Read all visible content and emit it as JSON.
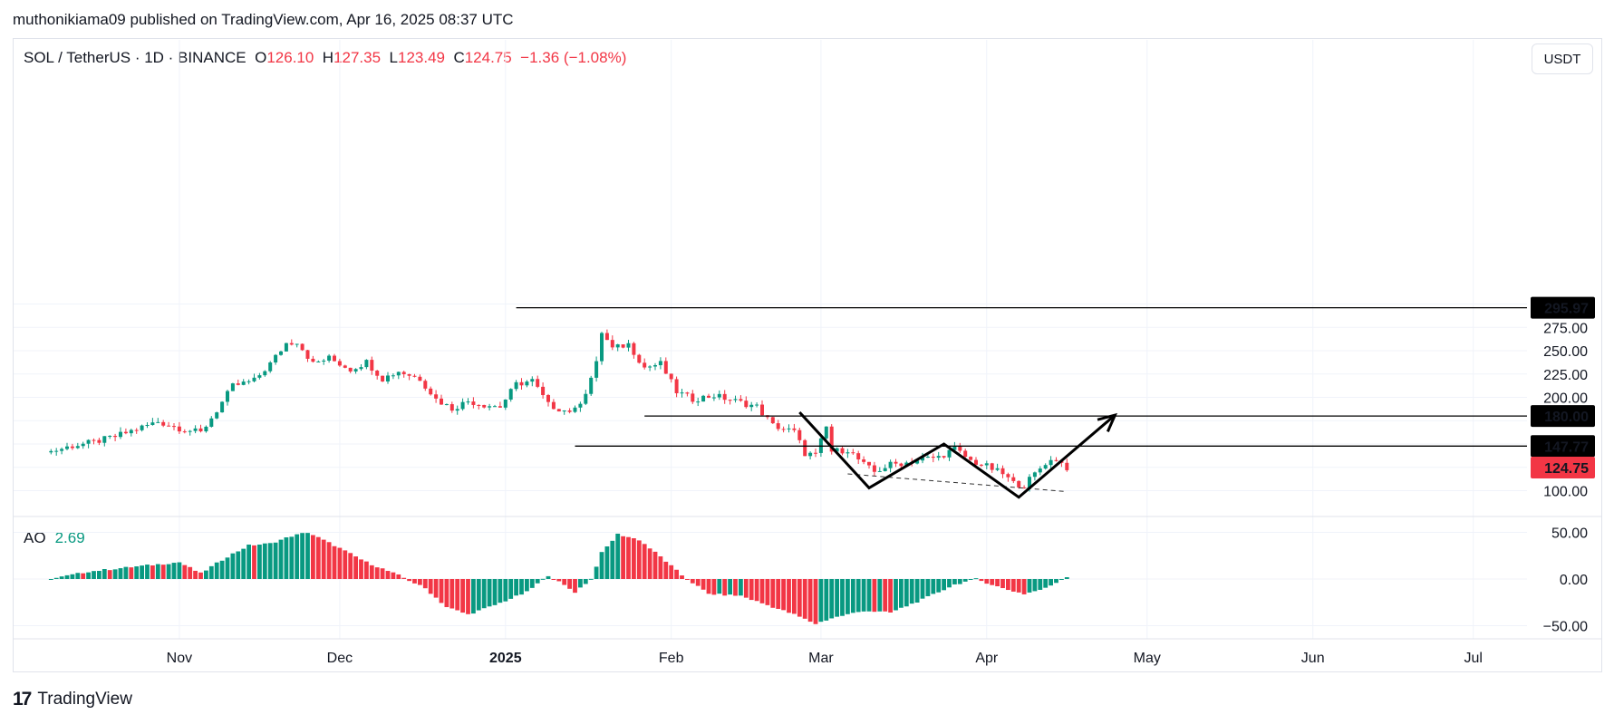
{
  "publisher_line": "muthonikiama09 published on TradingView.com, Apr 16, 2025 08:37 UTC",
  "legend": {
    "symbol": "SOL / TetherUS · 1D · BINANCE",
    "o_label": "O",
    "o": "126.10",
    "h_label": "H",
    "h": "127.35",
    "l_label": "L",
    "l": "123.49",
    "c_label": "C",
    "c": "124.75",
    "change": "−1.36 (−1.08%)"
  },
  "unit_button": "USDT",
  "indicator": {
    "name": "AO",
    "value": "2.69"
  },
  "footer_brand": "TradingView",
  "logo_glyph": "17",
  "colors": {
    "up": "#089981",
    "down": "#f23645",
    "text": "#131722",
    "grid": "#f0f3fa"
  },
  "chart_data": {
    "type": "candlestick",
    "title": "SOL / TetherUS · 1D · BINANCE",
    "price_ticks": [
      "275.00",
      "250.00",
      "225.00",
      "200.00",
      "100.00"
    ],
    "ao_ticks": [
      "50.00",
      "0.00",
      "−50.00"
    ],
    "x_tick_labels": [
      "Nov",
      "Dec",
      "2025",
      "Feb",
      "Mar",
      "Apr",
      "May",
      "Jun",
      "Jul"
    ],
    "price_labels": [
      {
        "text": "295.97",
        "value": 295.97,
        "style": "black"
      },
      {
        "text": "180.00",
        "value": 180.0,
        "style": "black"
      },
      {
        "text": "147.77",
        "value": 147.77,
        "style": "black"
      },
      {
        "text": "124.75",
        "value": 124.75,
        "style": "red"
      }
    ],
    "horizontal_lines": [
      {
        "value": 295.97,
        "from": "2025-01-03"
      },
      {
        "value": 180.0,
        "from": "2025-01-27"
      },
      {
        "value": 147.77,
        "from": "2025-01-14"
      }
    ],
    "pattern_path": [
      [
        "2025-02-25",
        184
      ],
      [
        "2025-03-10",
        103
      ],
      [
        "2025-03-24",
        150
      ],
      [
        "2025-04-07",
        93
      ],
      [
        "2025-04-25",
        181
      ]
    ],
    "trendline_dashed": [
      [
        "2025-03-06",
        118
      ],
      [
        "2025-04-16",
        99
      ]
    ],
    "closes": [
      [
        "2024-10-08",
        142
      ],
      [
        "2024-10-12",
        148
      ],
      [
        "2024-10-16",
        152
      ],
      [
        "2024-10-20",
        158
      ],
      [
        "2024-10-24",
        166
      ],
      [
        "2024-10-28",
        174
      ],
      [
        "2024-11-01",
        167
      ],
      [
        "2024-11-05",
        162
      ],
      [
        "2024-11-08",
        186
      ],
      [
        "2024-11-11",
        212
      ],
      [
        "2024-11-15",
        218
      ],
      [
        "2024-11-18",
        236
      ],
      [
        "2024-11-21",
        258
      ],
      [
        "2024-11-23",
        260
      ],
      [
        "2024-11-26",
        236
      ],
      [
        "2024-11-29",
        242
      ],
      [
        "2024-12-03",
        230
      ],
      [
        "2024-12-06",
        238
      ],
      [
        "2024-12-09",
        220
      ],
      [
        "2024-12-12",
        228
      ],
      [
        "2024-12-16",
        220
      ],
      [
        "2024-12-19",
        198
      ],
      [
        "2024-12-22",
        188
      ],
      [
        "2024-12-25",
        196
      ],
      [
        "2024-12-28",
        192
      ],
      [
        "2024-12-31",
        190
      ],
      [
        "2025-01-03",
        214
      ],
      [
        "2025-01-06",
        218
      ],
      [
        "2025-01-09",
        192
      ],
      [
        "2025-01-12",
        186
      ],
      [
        "2025-01-14",
        186
      ],
      [
        "2025-01-16",
        206
      ],
      [
        "2025-01-18",
        236
      ],
      [
        "2025-01-19",
        270
      ],
      [
        "2025-01-21",
        252
      ],
      [
        "2025-01-24",
        257
      ],
      [
        "2025-01-27",
        232
      ],
      [
        "2025-01-30",
        236
      ],
      [
        "2025-02-02",
        206
      ],
      [
        "2025-02-05",
        198
      ],
      [
        "2025-02-09",
        202
      ],
      [
        "2025-02-13",
        196
      ],
      [
        "2025-02-17",
        190
      ],
      [
        "2025-02-20",
        170
      ],
      [
        "2025-02-24",
        163
      ],
      [
        "2025-02-26",
        140
      ],
      [
        "2025-02-28",
        138
      ],
      [
        "2025-03-02",
        168
      ],
      [
        "2025-03-03",
        142
      ],
      [
        "2025-03-06",
        144
      ],
      [
        "2025-03-09",
        128
      ],
      [
        "2025-03-11",
        120
      ],
      [
        "2025-03-14",
        128
      ],
      [
        "2025-03-17",
        130
      ],
      [
        "2025-03-20",
        134
      ],
      [
        "2025-03-23",
        136
      ],
      [
        "2025-03-26",
        145
      ],
      [
        "2025-03-29",
        132
      ],
      [
        "2025-04-01",
        126
      ],
      [
        "2025-04-04",
        118
      ],
      [
        "2025-04-06",
        108
      ],
      [
        "2025-04-08",
        106
      ],
      [
        "2025-04-10",
        118
      ],
      [
        "2025-04-12",
        130
      ],
      [
        "2025-04-14",
        134
      ],
      [
        "2025-04-16",
        124.75
      ]
    ],
    "ao_values": [
      [
        "2024-10-08",
        0
      ],
      [
        "2024-10-15",
        8
      ],
      [
        "2024-10-25",
        14
      ],
      [
        "2024-11-01",
        18
      ],
      [
        "2024-11-05",
        6
      ],
      [
        "2024-11-10",
        24
      ],
      [
        "2024-11-14",
        36
      ],
      [
        "2024-11-18",
        38
      ],
      [
        "2024-11-22",
        46
      ],
      [
        "2024-11-25",
        50
      ],
      [
        "2024-11-30",
        36
      ],
      [
        "2024-12-06",
        18
      ],
      [
        "2024-12-12",
        4
      ],
      [
        "2024-12-17",
        -10
      ],
      [
        "2024-12-21",
        -30
      ],
      [
        "2024-12-25",
        -38
      ],
      [
        "2024-12-30",
        -28
      ],
      [
        "2025-01-05",
        -14
      ],
      [
        "2025-01-09",
        4
      ],
      [
        "2025-01-14",
        -14
      ],
      [
        "2025-01-17",
        0
      ],
      [
        "2025-01-19",
        28
      ],
      [
        "2025-01-22",
        48
      ],
      [
        "2025-01-26",
        42
      ],
      [
        "2025-01-30",
        24
      ],
      [
        "2025-02-03",
        4
      ],
      [
        "2025-02-08",
        -16
      ],
      [
        "2025-02-14",
        -18
      ],
      [
        "2025-02-19",
        -28
      ],
      [
        "2025-02-24",
        -38
      ],
      [
        "2025-02-28",
        -48
      ],
      [
        "2025-03-03",
        -42
      ],
      [
        "2025-03-09",
        -34
      ],
      [
        "2025-03-14",
        -36
      ],
      [
        "2025-03-20",
        -22
      ],
      [
        "2025-03-26",
        -6
      ],
      [
        "2025-03-30",
        0
      ],
      [
        "2025-04-04",
        -10
      ],
      [
        "2025-04-08",
        -16
      ],
      [
        "2025-04-12",
        -10
      ],
      [
        "2025-04-16",
        2.69
      ]
    ]
  }
}
